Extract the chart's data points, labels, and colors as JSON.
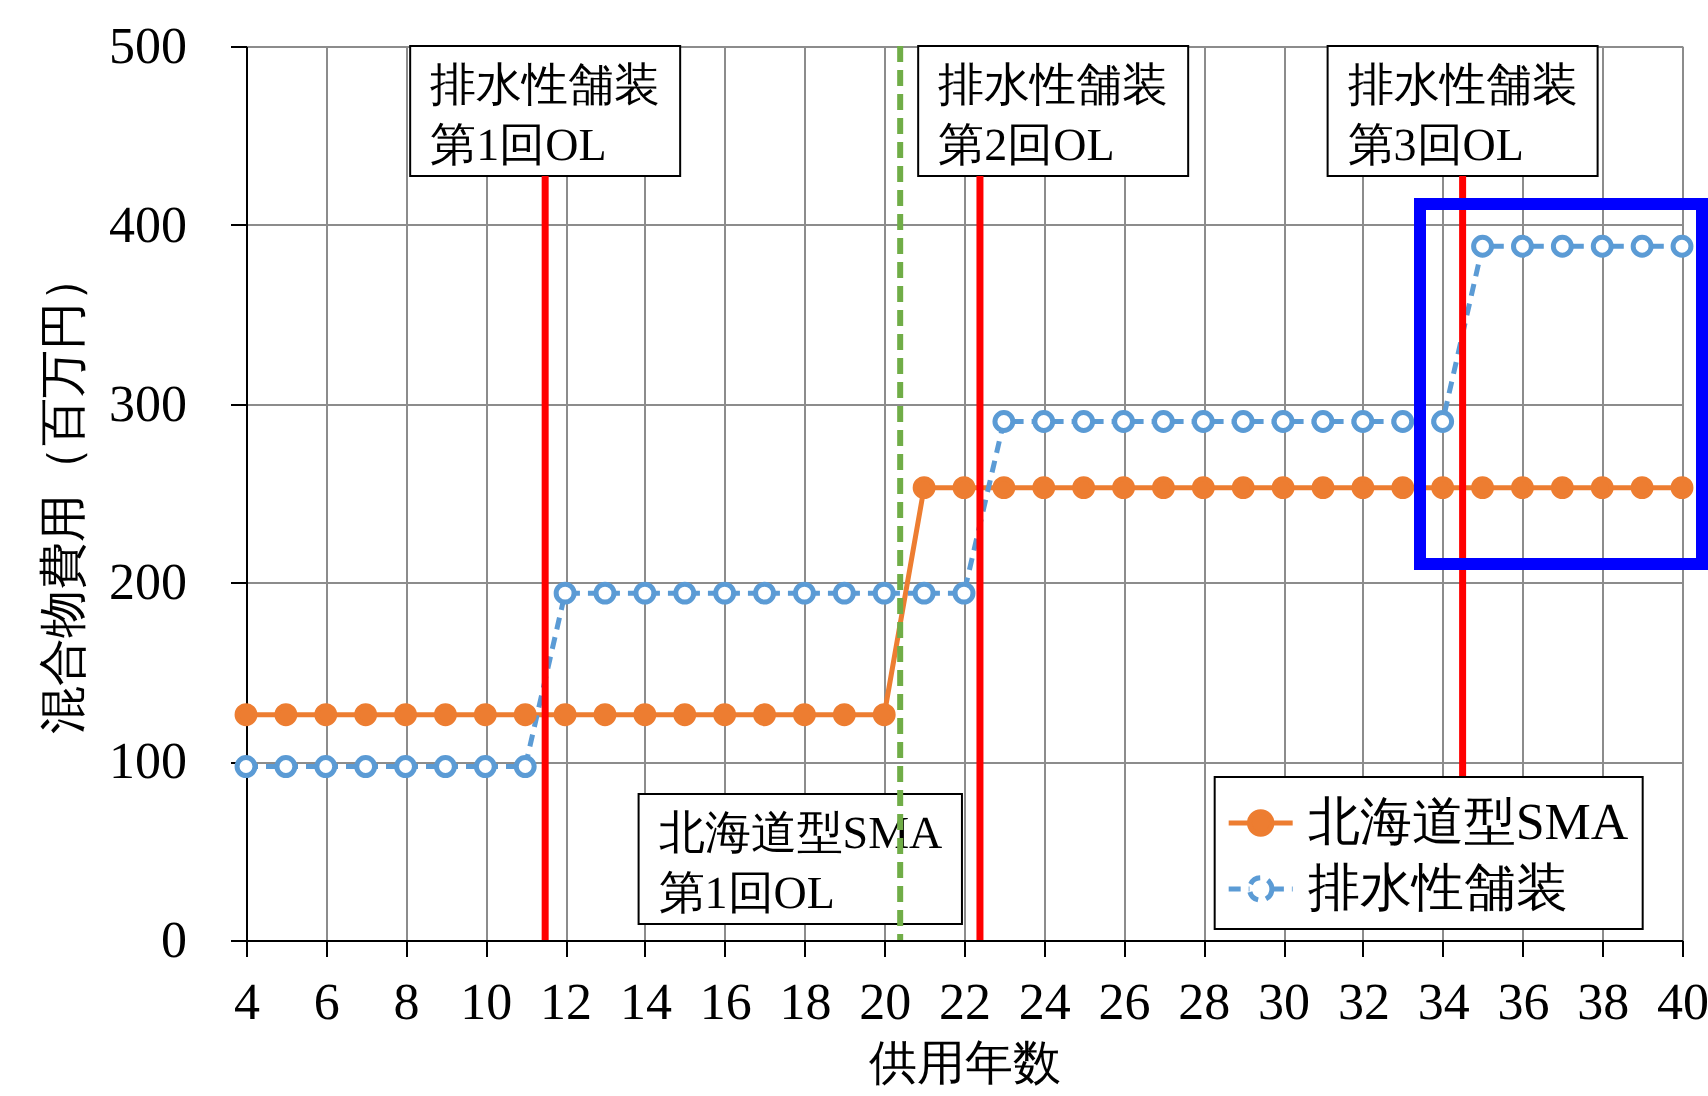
{
  "chart_data": {
    "type": "line",
    "xlabel": "供用年数",
    "ylabel": "混合物費用（百万円）",
    "x": [
      4,
      5,
      6,
      7,
      8,
      9,
      10,
      11,
      12,
      13,
      14,
      15,
      16,
      17,
      18,
      19,
      20,
      21,
      22,
      23,
      24,
      25,
      26,
      27,
      28,
      29,
      30,
      31,
      32,
      33,
      34,
      35,
      36,
      37,
      38,
      39,
      40
    ],
    "series": [
      {
        "name": "北海道型SMA",
        "color": "#ed7d31",
        "line_style": "solid",
        "values": [
          126,
          126,
          126,
          126,
          126,
          126,
          126,
          126,
          126,
          126,
          126,
          126,
          126,
          126,
          126,
          126,
          126,
          253,
          253,
          253,
          253,
          253,
          253,
          253,
          253,
          253,
          253,
          253,
          253,
          253,
          253,
          253,
          253,
          253,
          253,
          253,
          253
        ]
      },
      {
        "name": "排水性舗装",
        "color": "#5b9bd5",
        "line_style": "dashed",
        "values": [
          97,
          97,
          97,
          97,
          97,
          97,
          97,
          97,
          194,
          194,
          194,
          194,
          194,
          194,
          194,
          194,
          194,
          194,
          194,
          290,
          290,
          290,
          290,
          290,
          290,
          290,
          290,
          290,
          290,
          290,
          290,
          388,
          388,
          388,
          388,
          388,
          388
        ]
      }
    ],
    "xlim": [
      4,
      40
    ],
    "xticks": [
      4,
      6,
      8,
      10,
      12,
      14,
      16,
      18,
      20,
      22,
      24,
      26,
      28,
      30,
      32,
      34,
      36,
      38,
      40
    ],
    "ylim": [
      0,
      500
    ],
    "yticks": [
      0,
      100,
      200,
      300,
      400,
      500
    ],
    "grid": true,
    "legend": "bottom right",
    "marker": "circle",
    "ref_lines": [
      {
        "axis": "x",
        "value": 11.5,
        "label": "排水性舗装第1回OL",
        "color": "#ff0000",
        "line_style": "solid"
      },
      {
        "axis": "x",
        "value": 22.4,
        "label": "排水性舗装第2回OL",
        "color": "#ff0000",
        "line_style": "solid"
      },
      {
        "axis": "x",
        "value": 34.5,
        "label": "排水性舗装第3回OL",
        "color": "#ff0000",
        "line_style": "solid"
      },
      {
        "axis": "x",
        "value": 20.4,
        "label": "北海道型SMA 第1回OL",
        "color": "#70ad47",
        "line_style": "dashed"
      }
    ]
  }
}
